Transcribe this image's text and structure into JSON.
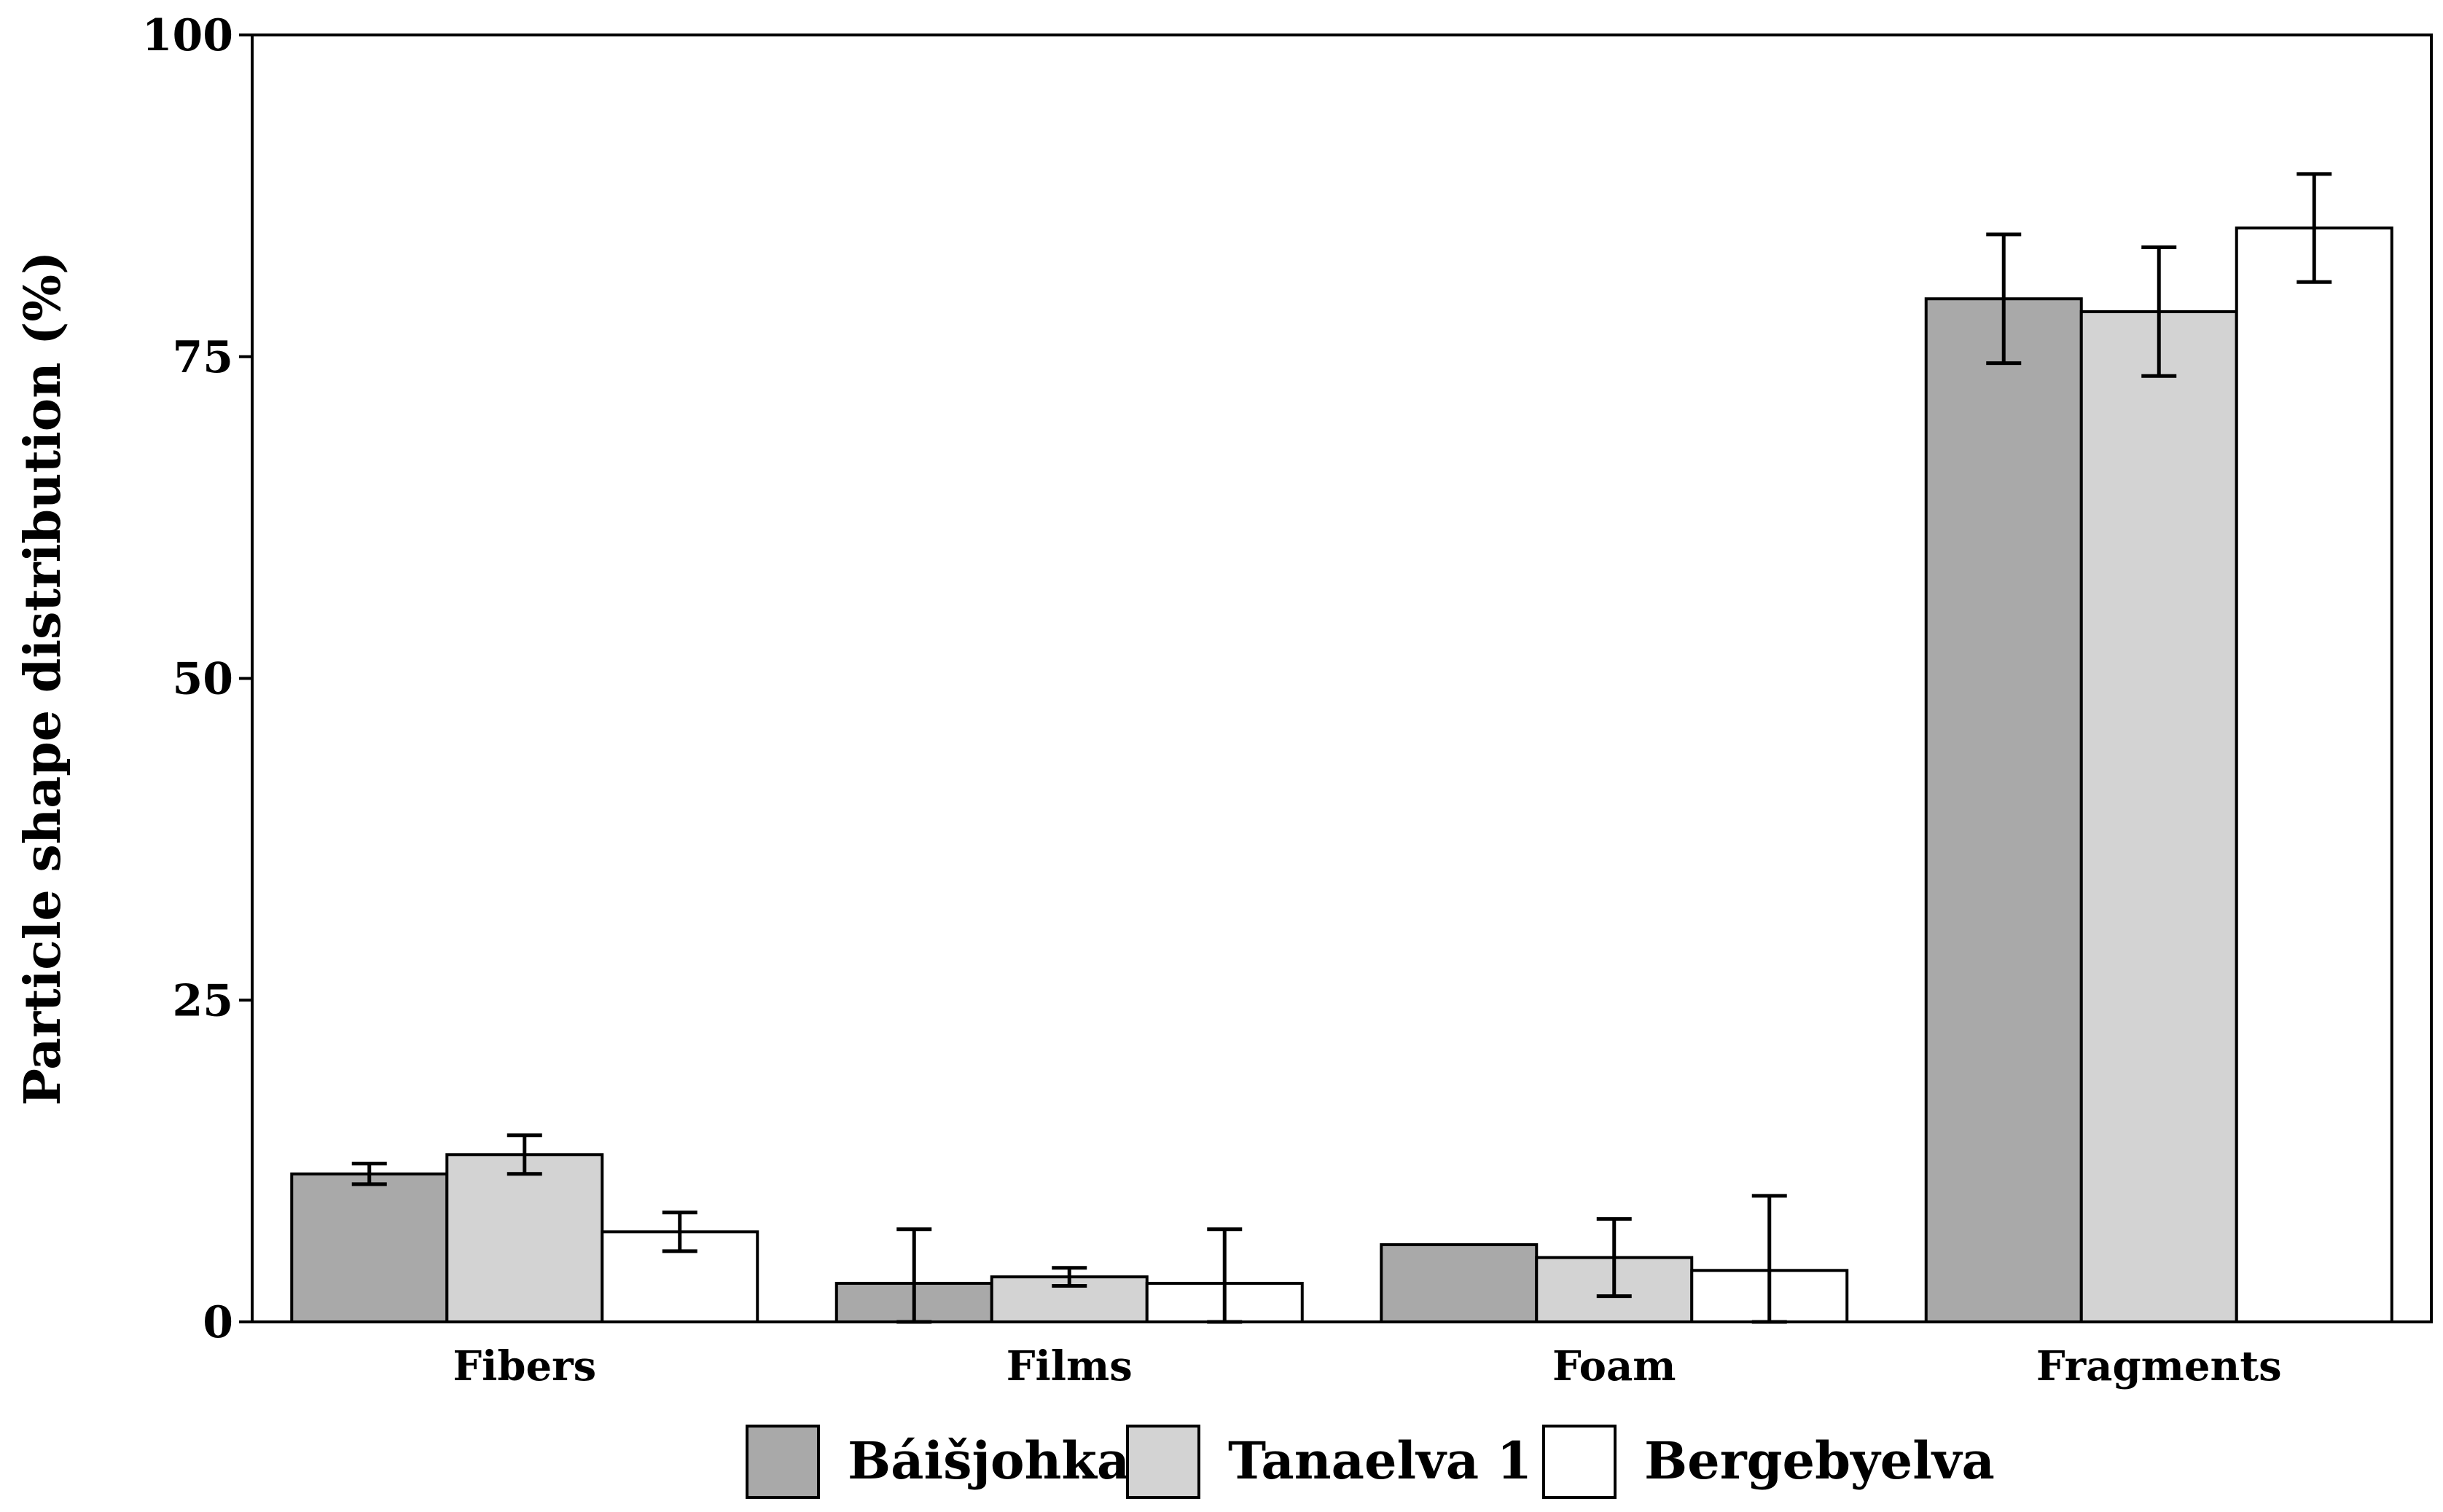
{
  "chart_data": {
    "type": "bar",
    "title": "",
    "xlabel": "",
    "ylabel": "Particle shape distribution (%)",
    "ylim": [
      0,
      100
    ],
    "yticks": [
      0,
      25,
      50,
      75,
      100
    ],
    "grid": false,
    "legend_position": "bottom",
    "categories": [
      "Fibers",
      "Films",
      "Foam",
      "Fragments"
    ],
    "series": [
      {
        "name": "Báišjohka",
        "color": "#a9a9a9",
        "values": [
          11.5,
          3,
          6,
          79.5
        ],
        "errors": [
          0.8,
          4.2,
          0,
          5
        ]
      },
      {
        "name": "Tanaelva 1",
        "color": "#d3d3d3",
        "values": [
          13,
          3.5,
          5,
          78.5
        ],
        "errors": [
          1.5,
          0.7,
          3,
          5
        ]
      },
      {
        "name": "Bergebyelva",
        "color": "#ffffff",
        "values": [
          7,
          3,
          4,
          85
        ],
        "errors": [
          1.5,
          4.2,
          5.8,
          4.2
        ]
      }
    ]
  }
}
